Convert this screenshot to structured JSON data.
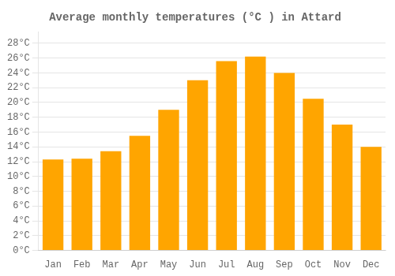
{
  "chart_data": {
    "type": "bar",
    "title": "Average monthly temperatures (°C ) in Attard",
    "categories": [
      "Jan",
      "Feb",
      "Mar",
      "Apr",
      "May",
      "Jun",
      "Jul",
      "Aug",
      "Sep",
      "Oct",
      "Nov",
      "Dec"
    ],
    "values": [
      12.3,
      12.4,
      13.4,
      15.5,
      19.0,
      23.0,
      25.6,
      26.2,
      24.0,
      20.5,
      17.0,
      14.0
    ],
    "color": "#FFA500",
    "ylim": [
      0,
      29.5
    ],
    "yticks": [
      {
        "value": 0,
        "label": "0°C"
      },
      {
        "value": 2,
        "label": "2°C"
      },
      {
        "value": 4,
        "label": "4°C"
      },
      {
        "value": 6,
        "label": "6°C"
      },
      {
        "value": 8,
        "label": "8°C"
      },
      {
        "value": 10,
        "label": "10°C"
      },
      {
        "value": 12,
        "label": "12°C"
      },
      {
        "value": 14,
        "label": "14°C"
      },
      {
        "value": 16,
        "label": "16°C"
      },
      {
        "value": 18,
        "label": "18°C"
      },
      {
        "value": 20,
        "label": "20°C"
      },
      {
        "value": 22,
        "label": "22°C"
      },
      {
        "value": 24,
        "label": "24°C"
      },
      {
        "value": 26,
        "label": "26°C"
      },
      {
        "value": 28,
        "label": "28°C"
      }
    ],
    "grid": true
  }
}
